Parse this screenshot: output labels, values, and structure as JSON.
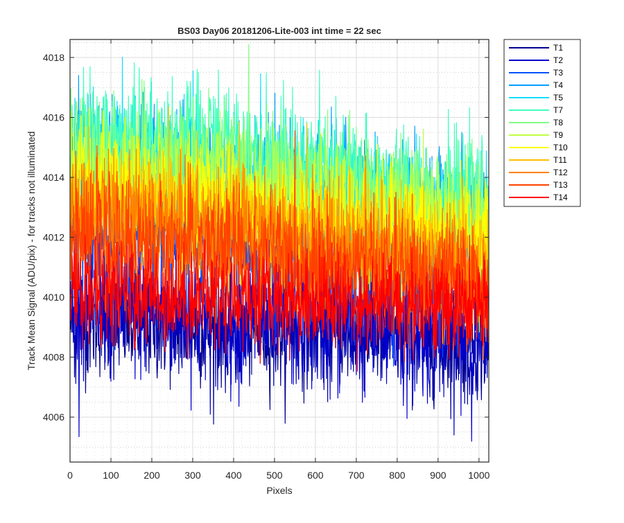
{
  "chart_data": {
    "type": "line",
    "title": "BS03 Day06 20181206-Lite-003 int time = 22 sec",
    "xlabel": "Pixels",
    "ylabel": "Track Mean Signal (ADU/pix) - for tracks not illuminated",
    "xlim": [
      0,
      1024
    ],
    "ylim": [
      4004.5,
      4018.6
    ],
    "xticks": [
      0,
      100,
      200,
      300,
      400,
      500,
      600,
      700,
      800,
      900,
      1000
    ],
    "yticks": [
      4006,
      4008,
      4010,
      4012,
      4014,
      4016,
      4018
    ],
    "grid": "major and minor on",
    "legend_position": "outside top-right",
    "series": [
      {
        "name": "T1",
        "color": "#00008F",
        "mean": [
          4009.2,
          4008.9,
          4008.8,
          4008.4
        ],
        "noise": 0.9
      },
      {
        "name": "T2",
        "color": "#0000CC",
        "mean": [
          4009.8,
          4009.3,
          4009.0,
          4008.6
        ],
        "noise": 1.1
      },
      {
        "name": "T3",
        "color": "#0050FF",
        "mean": [
          4012.5,
          4012.0,
          4011.2,
          4010.6
        ],
        "noise": 1.1
      },
      {
        "name": "T4",
        "color": "#00A0FF",
        "mean": [
          4014.8,
          4014.4,
          4013.5,
          4012.6
        ],
        "noise": 1.0
      },
      {
        "name": "T5",
        "color": "#10DFFF",
        "mean": [
          4014.6,
          4014.2,
          4013.3,
          4012.4
        ],
        "noise": 1.0
      },
      {
        "name": "T7",
        "color": "#40FFBF",
        "mean": [
          4015.2,
          4015.3,
          4014.0,
          4013.0
        ],
        "noise": 1.0
      },
      {
        "name": "T8",
        "color": "#80FF80",
        "mean": [
          4014.6,
          4014.4,
          4013.5,
          4012.6
        ],
        "noise": 1.0
      },
      {
        "name": "T9",
        "color": "#BFFF40",
        "mean": [
          4014.0,
          4013.8,
          4013.0,
          4012.2
        ],
        "noise": 1.0
      },
      {
        "name": "T10",
        "color": "#FFFF00",
        "mean": [
          4013.5,
          4013.2,
          4012.5,
          4011.8
        ],
        "noise": 1.0
      },
      {
        "name": "T11",
        "color": "#FFBF00",
        "mean": [
          4013.0,
          4012.7,
          4012.0,
          4011.3
        ],
        "noise": 1.0
      },
      {
        "name": "T12",
        "color": "#FF8000",
        "mean": [
          4012.6,
          4012.3,
          4011.5,
          4010.8
        ],
        "noise": 1.0
      },
      {
        "name": "T13",
        "color": "#FF4000",
        "mean": [
          4011.9,
          4011.7,
          4011.0,
          4010.3
        ],
        "noise": 1.0
      },
      {
        "name": "T14",
        "color": "#FF0000",
        "mean": [
          4010.1,
          4010.0,
          4009.9,
          4009.6
        ],
        "noise": 0.8
      }
    ]
  }
}
